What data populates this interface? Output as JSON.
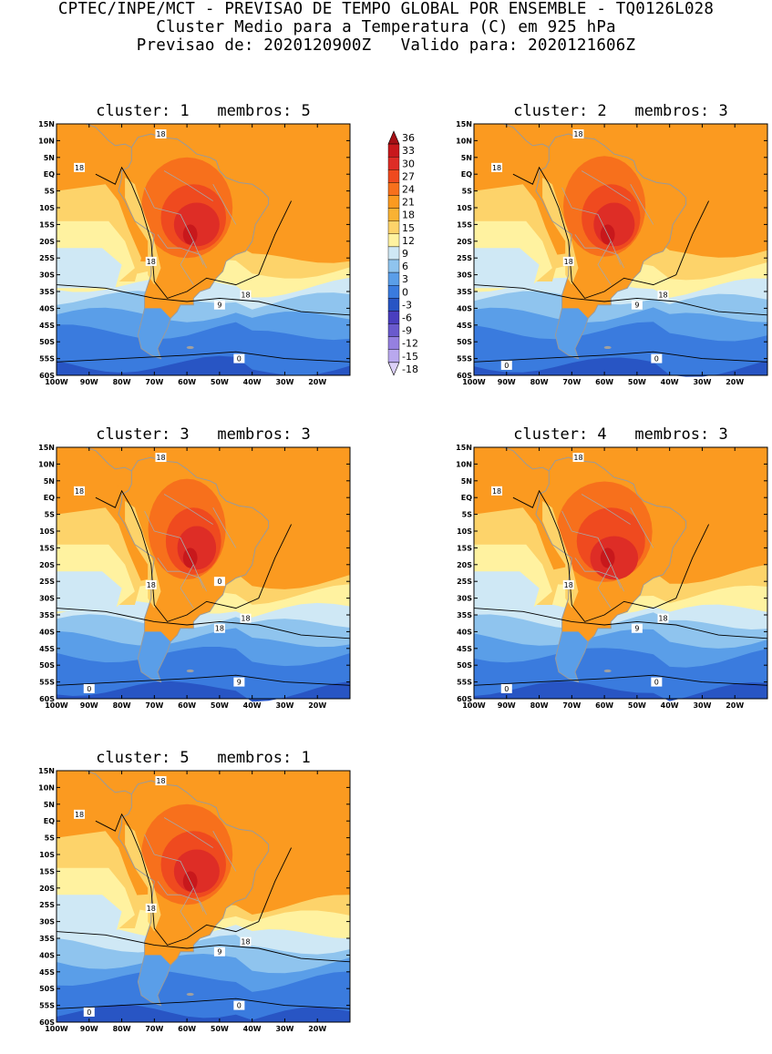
{
  "header": {
    "line1": "CPTEC/INPE/MCT - PREVISAO DE TEMPO GLOBAL POR ENSEMBLE - TQ0126L028",
    "line2": "Cluster Medio para a Temperatura (C) em 925 hPa",
    "line3": "Previsao de: 2020120900Z   Valido para: 2020121606Z"
  },
  "axes": {
    "lat_labels": [
      "15N",
      "10N",
      "5N",
      "EQ",
      "5S",
      "10S",
      "15S",
      "20S",
      "25S",
      "30S",
      "35S",
      "40S",
      "45S",
      "50S",
      "55S",
      "60S"
    ],
    "lon_labels": [
      "100W",
      "90W",
      "80W",
      "70W",
      "60W",
      "50W",
      "40W",
      "30W",
      "20W"
    ]
  },
  "legend": {
    "levels": [
      "36",
      "33",
      "30",
      "27",
      "24",
      "21",
      "18",
      "15",
      "12",
      "9",
      "6",
      "3",
      "0",
      "-3",
      "-6",
      "-9",
      "-12",
      "-15",
      "-18"
    ],
    "colors": [
      "#a50f15",
      "#c8181c",
      "#de2d26",
      "#ef4a1f",
      "#f7701c",
      "#fb9a20",
      "#f9b233",
      "#fdd36a",
      "#fff2a0",
      "#cfe8f5",
      "#8fc4ee",
      "#5a9ee8",
      "#3a7bde",
      "#2855c4",
      "#4a3fbf",
      "#6a5acd",
      "#9580e0",
      "#b9a8ee",
      "#dcd0f8"
    ]
  },
  "panels": [
    {
      "title": "cluster: 1   membros: 5",
      "labels": [
        "18",
        "18",
        "18",
        "18",
        "9",
        "0"
      ],
      "warmth": 1.0
    },
    {
      "title": "cluster: 2   membros: 3",
      "labels": [
        "18",
        "18",
        "18",
        "18",
        "9",
        "0",
        "0"
      ],
      "warmth": 0.9
    },
    {
      "title": "cluster: 3   membros: 3",
      "labels": [
        "18",
        "18",
        "18",
        "18",
        "18",
        "9",
        "0",
        "0"
      ],
      "warmth": 0.85
    },
    {
      "title": "cluster: 4   membros: 3",
      "labels": [
        "18",
        "18",
        "18",
        "18",
        "9",
        "0",
        "0"
      ],
      "warmth": 1.05
    },
    {
      "title": "cluster: 5   membros: 1",
      "labels": [
        "18",
        "18",
        "18",
        "18",
        "9",
        "0",
        "0"
      ],
      "warmth": 1.0
    }
  ]
}
